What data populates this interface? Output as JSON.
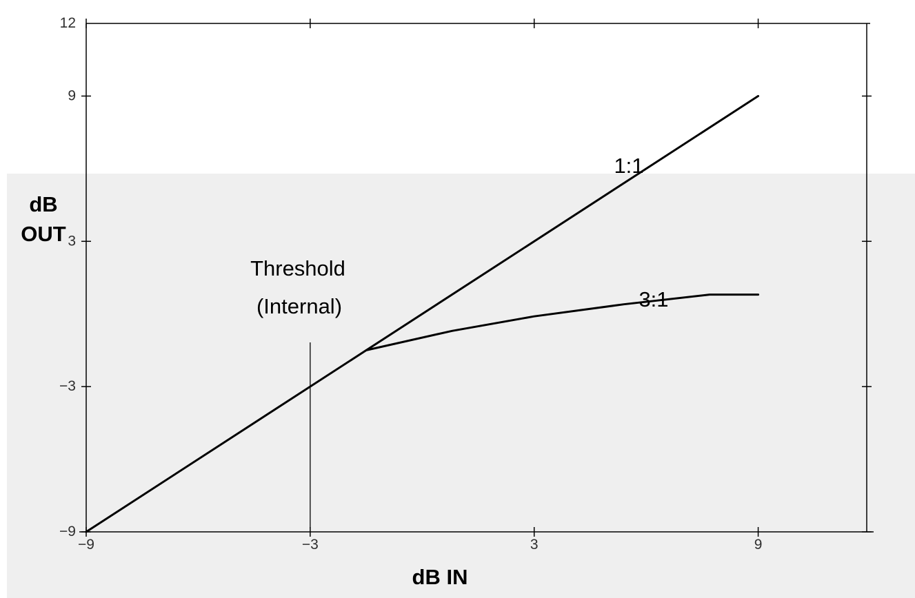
{
  "chart_data": {
    "type": "line",
    "xlabel": "dB IN",
    "ylabel_lines": [
      "dB",
      "OUT"
    ],
    "xlim": [
      -9,
      12
    ],
    "ylim": [
      -9,
      12
    ],
    "x_ticks": [
      -9,
      -3,
      3,
      9
    ],
    "x_tick_labels": [
      "−9",
      "−3",
      "3",
      "9"
    ],
    "y_ticks": [
      -9,
      -3,
      3,
      9,
      12
    ],
    "y_tick_labels": [
      "−9",
      "−3",
      "3",
      "9",
      "12"
    ],
    "grid": false,
    "series": [
      {
        "name": "1:1",
        "x": [
          -9,
          9
        ],
        "y": [
          -9,
          9
        ]
      },
      {
        "name": "3:1",
        "x": [
          -1.5,
          0.8,
          3,
          5.4,
          7.7,
          9
        ],
        "y": [
          -1.5,
          -0.7,
          -0.1,
          0.4,
          0.8,
          0.8
        ]
      }
    ],
    "threshold": {
      "x": -3,
      "label_lines": [
        "Threshold",
        "(Internal)"
      ]
    },
    "colors": {
      "line": "#000000",
      "background_band": "#efefef",
      "axis": "#000000"
    }
  }
}
